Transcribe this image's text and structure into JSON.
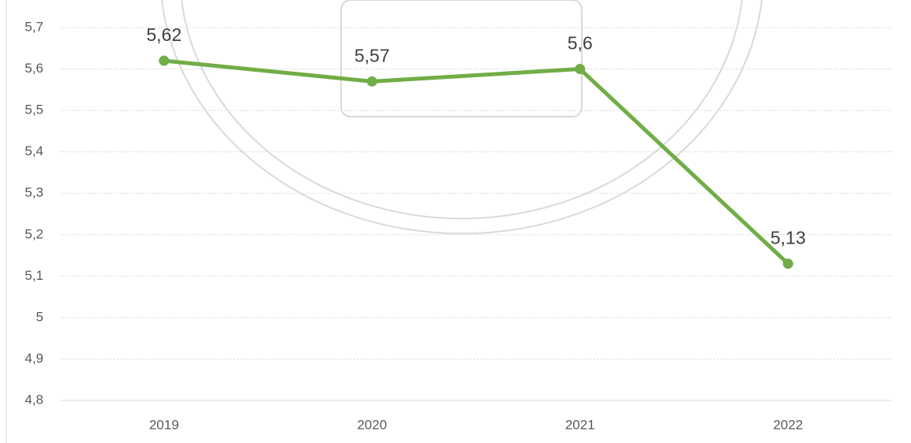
{
  "chart_data": {
    "type": "line",
    "categories": [
      "2019",
      "2020",
      "2021",
      "2022"
    ],
    "series": [
      {
        "color": "#70ad47",
        "values": [
          5.62,
          5.57,
          5.6,
          5.13
        ],
        "value_labels": [
          "5,62",
          "5,57",
          "5,6",
          "5,13"
        ]
      }
    ],
    "ylim": [
      4.8,
      5.7
    ],
    "yticks": [
      {
        "value": 4.8,
        "label": "4,8"
      },
      {
        "value": 4.9,
        "label": "4,9"
      },
      5,
      {
        "value": 5.1,
        "label": "5,1"
      },
      {
        "value": 5.2,
        "label": "5,2"
      },
      {
        "value": 5.3,
        "label": "5,3"
      },
      {
        "value": 5.4,
        "label": "5,4"
      },
      {
        "value": 5.5,
        "label": "5,5"
      },
      {
        "value": 5.6,
        "label": "5,6"
      },
      {
        "value": 5.7,
        "label": "5,7"
      }
    ],
    "grid": true
  }
}
